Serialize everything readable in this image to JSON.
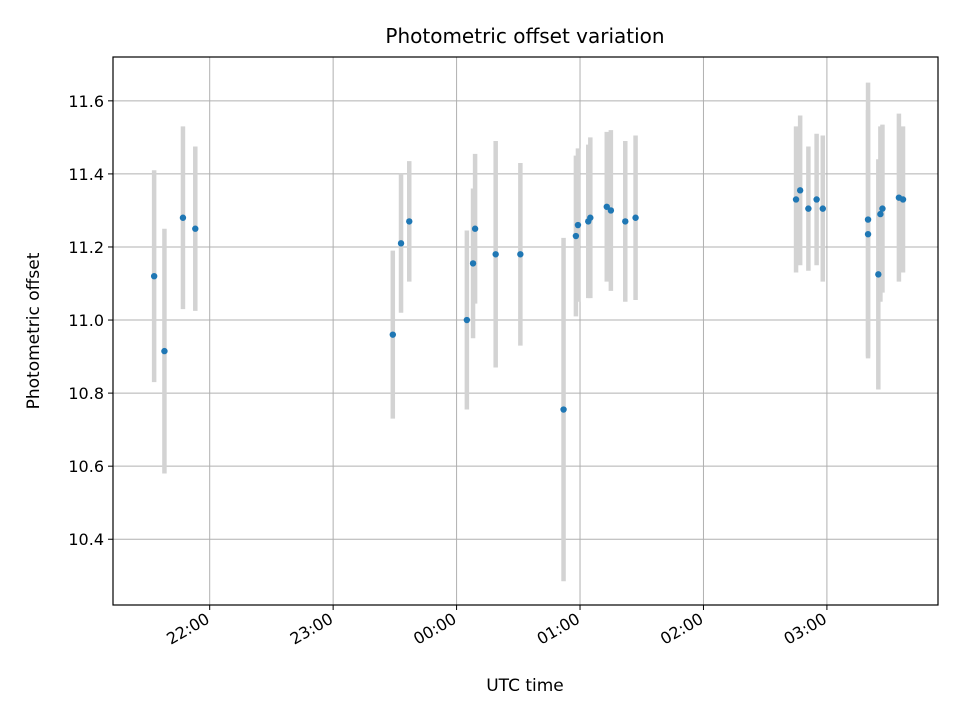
{
  "chart_data": {
    "type": "scatter",
    "title": "Photometric offset variation",
    "xlabel": "UTC time",
    "ylabel": "Photometric offset",
    "x_ticks": [
      "22:00",
      "23:00",
      "00:00",
      "01:00",
      "02:00",
      "03:00"
    ],
    "x_tick_hours": [
      22,
      23,
      24,
      25,
      26,
      27
    ],
    "y_ticks": [
      "10.4",
      "10.6",
      "10.8",
      "11.0",
      "11.2",
      "11.4",
      "11.6"
    ],
    "y_tick_values": [
      10.4,
      10.6,
      10.8,
      11.0,
      11.2,
      11.4,
      11.6
    ],
    "xlim": [
      "21:13",
      "03:54"
    ],
    "ylim": [
      10.22,
      11.72
    ],
    "grid": true,
    "colors": {
      "point": "#1f77b4",
      "errorbar": "#d3d3d3",
      "grid": "#b0b0b0"
    },
    "points": [
      {
        "time": "21:33",
        "y": 11.12,
        "err": 0.29
      },
      {
        "time": "21:38",
        "y": 10.915,
        "err": 0.335
      },
      {
        "time": "21:47",
        "y": 11.28,
        "err": 0.25
      },
      {
        "time": "21:53",
        "y": 11.25,
        "err": 0.225
      },
      {
        "time": "23:29",
        "y": 10.96,
        "err": 0.23
      },
      {
        "time": "23:33",
        "y": 11.21,
        "err": 0.19
      },
      {
        "time": "23:37",
        "y": 11.27,
        "err": 0.165
      },
      {
        "time": "00:05",
        "y": 11.0,
        "err": 0.245
      },
      {
        "time": "00:08",
        "y": 11.155,
        "err": 0.205
      },
      {
        "time": "00:09",
        "y": 11.25,
        "err": 0.205
      },
      {
        "time": "00:19",
        "y": 11.18,
        "err": 0.31
      },
      {
        "time": "00:31",
        "y": 11.18,
        "err": 0.25
      },
      {
        "time": "00:52",
        "y": 10.755,
        "err": 0.47
      },
      {
        "time": "00:58",
        "y": 11.23,
        "err": 0.22
      },
      {
        "time": "00:59",
        "y": 11.26,
        "err": 0.21
      },
      {
        "time": "01:04",
        "y": 11.27,
        "err": 0.21
      },
      {
        "time": "01:05",
        "y": 11.28,
        "err": 0.22
      },
      {
        "time": "01:13",
        "y": 11.31,
        "err": 0.205
      },
      {
        "time": "01:15",
        "y": 11.3,
        "err": 0.22
      },
      {
        "time": "01:22",
        "y": 11.27,
        "err": 0.22
      },
      {
        "time": "01:27",
        "y": 11.28,
        "err": 0.225
      },
      {
        "time": "02:45",
        "y": 11.33,
        "err": 0.2
      },
      {
        "time": "02:47",
        "y": 11.355,
        "err": 0.205
      },
      {
        "time": "02:51",
        "y": 11.305,
        "err": 0.17
      },
      {
        "time": "02:55",
        "y": 11.33,
        "err": 0.18
      },
      {
        "time": "02:58",
        "y": 11.305,
        "err": 0.2
      },
      {
        "time": "03:20",
        "y": 11.275,
        "err": 0.375
      },
      {
        "time": "03:20",
        "y": 11.235,
        "err": 0.34
      },
      {
        "time": "03:25",
        "y": 11.125,
        "err": 0.315
      },
      {
        "time": "03:26",
        "y": 11.29,
        "err": 0.24
      },
      {
        "time": "03:27",
        "y": 11.305,
        "err": 0.23
      },
      {
        "time": "03:35",
        "y": 11.335,
        "err": 0.23
      },
      {
        "time": "03:37",
        "y": 11.33,
        "err": 0.2
      }
    ]
  }
}
